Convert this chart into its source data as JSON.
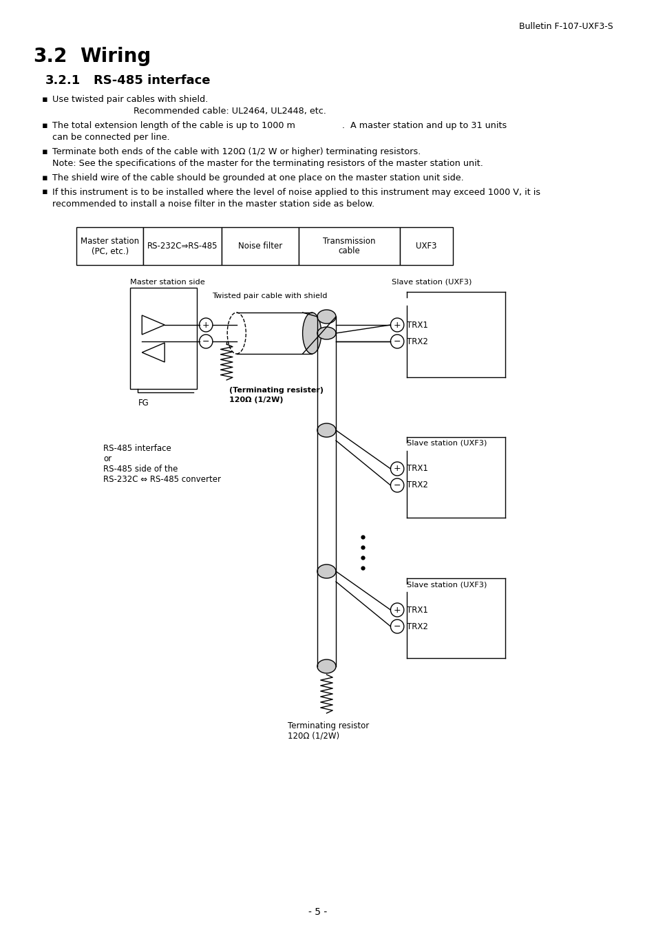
{
  "header": "Bulletin F-107-UXF3-S",
  "sec_num": "3.2",
  "sec_title": "Wiring",
  "subsec_num": "3.2.1",
  "subsec_title": "RS-485 interface",
  "b1a": "Use twisted pair cables with shield.",
  "b1b": "Recommended cable: UL2464, UL2448, etc.",
  "b2a": "The total extension length of the cable is up to 1000 m                 .  A master station and up to 31 units",
  "b2b": "can be connected per line.",
  "b3a": "Terminate both ends of the cable with 120Ω (1/2 W or higher) terminating resistors.",
  "b3b": "Note: See the specifications of the master for the terminating resistors of the master station unit.",
  "b4": "The shield wire of the cable should be grounded at one place on the master station unit side.",
  "b5a": "If this instrument is to be installed where the level of noise applied to this instrument may exceed 1000 V, it is",
  "b5b": "recommended to install a noise filter in the master station side as below.",
  "box_labels": [
    "Master station\n(PC, etc.)",
    "RS-232C⇒RS-485",
    "Noise filter",
    "Transmission\ncable",
    "UXF3"
  ],
  "diag_label_master": "Master station side",
  "diag_label_slave1": "Slave station (UXF3)",
  "diag_label_slave2": "Slave station (UXF3)",
  "diag_label_slave3": "Slave station (UXF3)",
  "diag_cable_label": "Twisted pair cable with shield",
  "termres1_label1": "(Terminating resister)",
  "termres1_label2": "120Ω (1/2W)",
  "rs485_label1": "RS-485 interface",
  "rs485_label2": "or",
  "rs485_label3": "RS-485 side of the",
  "rs485_label4": "RS-232C ⇔ RS-485 converter",
  "termres2_label1": "Terminating resistor",
  "termres2_label2": "120Ω (1/2W)",
  "page": "- 5 -",
  "bg": "#ffffff",
  "fg": "#000000"
}
